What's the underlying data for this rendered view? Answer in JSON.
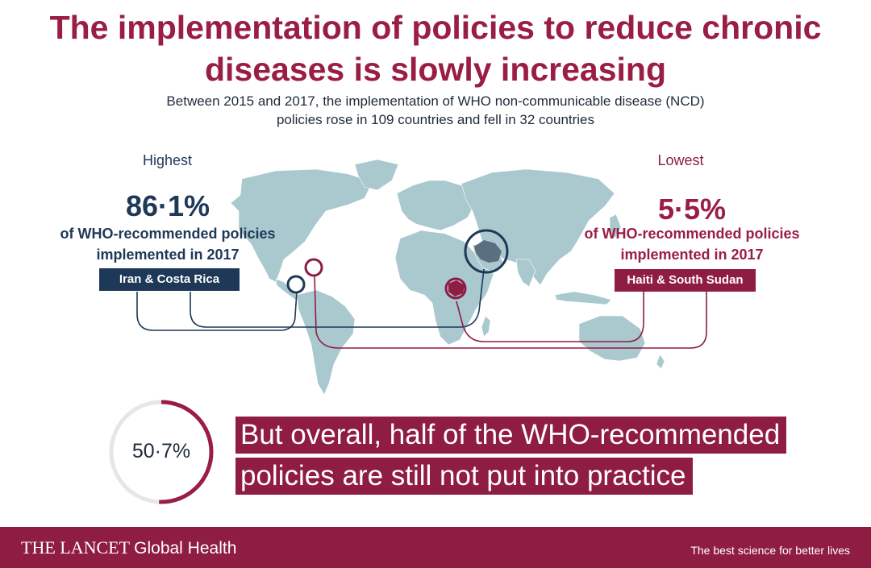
{
  "title": "The implementation of policies to reduce chronic diseases is slowly increasing",
  "subtitle": {
    "line1": "Between 2015 and 2017, the implementation of WHO non-communicable disease (NCD)",
    "line2": "policies rose in 109 countries and fell in 32 countries"
  },
  "highest": {
    "label": "Highest",
    "percent": "86·1%",
    "desc_line1": "of WHO-recommended policies",
    "desc_line2": "implemented in 2017",
    "countries": "Iran & Costa Rica"
  },
  "lowest": {
    "label": "Lowest",
    "percent": "5·5%",
    "desc_line1": "of WHO-recommended policies",
    "desc_line2": "implemented in 2017",
    "countries": "Haiti & South Sudan"
  },
  "overall": {
    "percent": "50·7%",
    "fraction": 0.507,
    "message_line1": "But overall, half of the WHO-recommended",
    "message_line2": "policies are still not put into practice"
  },
  "footer": {
    "brand": "THE LANCET",
    "brand_sub": "Global Health",
    "tagline": "The best science for better lives"
  },
  "colors": {
    "accent": "#9a1d44",
    "navy": "#1e3857",
    "land": "#a9c9cf",
    "ring_track": "#e6e6e6"
  }
}
